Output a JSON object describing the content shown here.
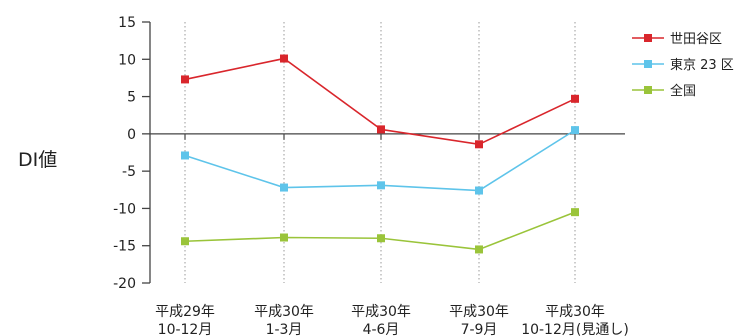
{
  "chart_data": {
    "type": "line",
    "ylabel": "DI値",
    "ylim": [
      -20,
      15
    ],
    "yticks": [
      15,
      10,
      5,
      0,
      -5,
      -10,
      -15,
      -20
    ],
    "categories": [
      [
        "平成29年",
        "10-12月"
      ],
      [
        "平成30年",
        "1-3月"
      ],
      [
        "平成30年",
        "4-6月"
      ],
      [
        "平成30年",
        "7-9月"
      ],
      [
        "平成30年",
        "10-12月(見通し)"
      ]
    ],
    "grid": "vertical dotted",
    "legend_position": "right",
    "series": [
      {
        "name": "世田谷区",
        "color": "#d9262c",
        "values": [
          7.3,
          10.1,
          0.6,
          -1.4,
          4.7
        ]
      },
      {
        "name": "東京 23 区",
        "color": "#5ec4ea",
        "values": [
          -2.9,
          -7.2,
          -6.9,
          -7.6,
          0.5
        ]
      },
      {
        "name": "全国",
        "color": "#9ac43a",
        "values": [
          -14.4,
          -13.9,
          -14.0,
          -15.5,
          -10.5
        ]
      }
    ]
  }
}
